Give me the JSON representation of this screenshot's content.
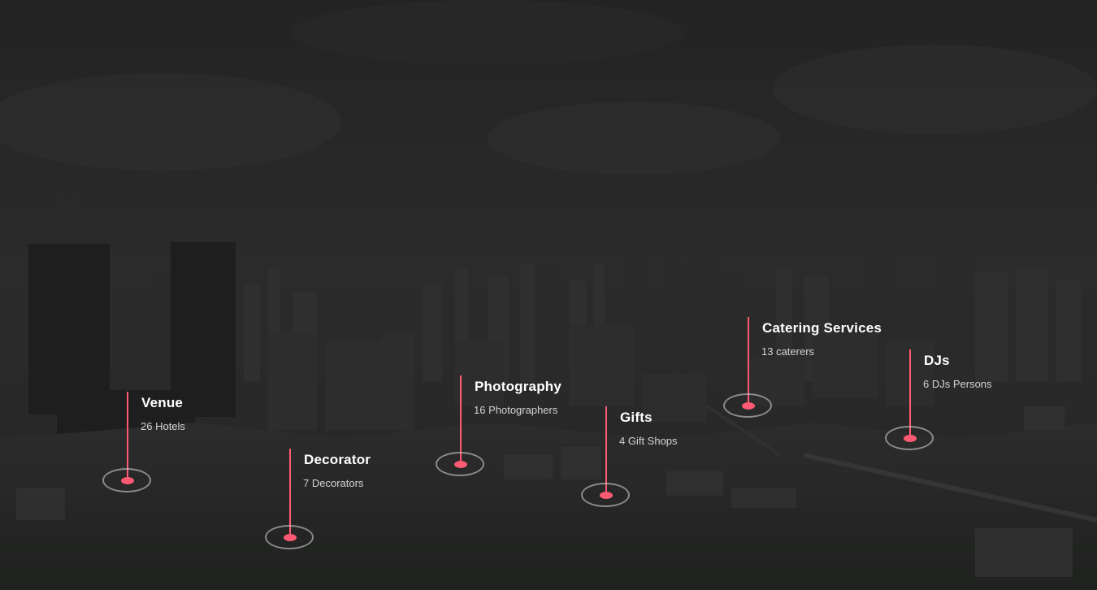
{
  "categories": [
    {
      "title": "Venue",
      "subtitle": "26 Hotels"
    },
    {
      "title": "Decorator",
      "subtitle": "7 Decorators"
    },
    {
      "title": "Photography",
      "subtitle": "16 Photographers"
    },
    {
      "title": "Gifts",
      "subtitle": "4 Gift Shops"
    },
    {
      "title": "Catering Services",
      "subtitle": "13 caterers"
    },
    {
      "title": "DJs",
      "subtitle": "6 DJs Persons"
    }
  ],
  "colors": {
    "accent": "#ff5a73",
    "title_text": "#ffffff",
    "subtitle_text": "#d4d4d4"
  }
}
